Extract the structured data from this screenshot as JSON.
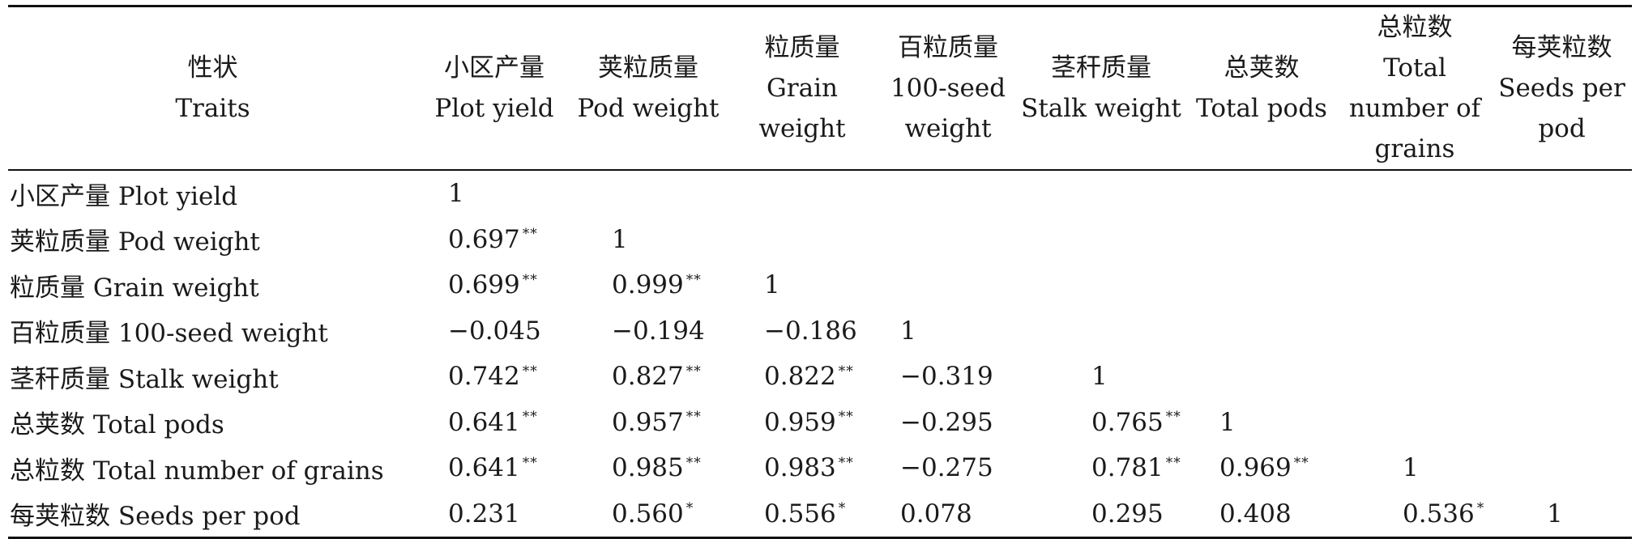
{
  "table": {
    "header_traits": {
      "zh": "性状",
      "en": "Traits"
    },
    "columns": [
      {
        "zh": "小区产量",
        "en": "Plot yield"
      },
      {
        "zh": "荚粒质量",
        "en": "Pod weight"
      },
      {
        "zh": "粒质量",
        "en": "Grain weight"
      },
      {
        "zh": "百粒质量",
        "en": "100-seed weight"
      },
      {
        "zh": "茎秆质量",
        "en": "Stalk weight"
      },
      {
        "zh": "总荚数",
        "en": "Total pods"
      },
      {
        "zh": "总粒数",
        "en": "Total number of grains"
      },
      {
        "zh": "每荚粒数",
        "en": "Seeds per pod"
      }
    ],
    "rows": [
      {
        "label": "小区产量 Plot yield",
        "cells": [
          {
            "v": "1",
            "s": ""
          },
          {
            "v": "",
            "s": ""
          },
          {
            "v": "",
            "s": ""
          },
          {
            "v": "",
            "s": ""
          },
          {
            "v": "",
            "s": ""
          },
          {
            "v": "",
            "s": ""
          },
          {
            "v": "",
            "s": ""
          },
          {
            "v": "",
            "s": ""
          }
        ]
      },
      {
        "label": "荚粒质量 Pod weight",
        "cells": [
          {
            "v": "0.697",
            "s": "**"
          },
          {
            "v": "1",
            "s": ""
          },
          {
            "v": "",
            "s": ""
          },
          {
            "v": "",
            "s": ""
          },
          {
            "v": "",
            "s": ""
          },
          {
            "v": "",
            "s": ""
          },
          {
            "v": "",
            "s": ""
          },
          {
            "v": "",
            "s": ""
          }
        ]
      },
      {
        "label": "粒质量 Grain weight",
        "cells": [
          {
            "v": "0.699",
            "s": "**"
          },
          {
            "v": "0.999",
            "s": "**"
          },
          {
            "v": "1",
            "s": ""
          },
          {
            "v": "",
            "s": ""
          },
          {
            "v": "",
            "s": ""
          },
          {
            "v": "",
            "s": ""
          },
          {
            "v": "",
            "s": ""
          },
          {
            "v": "",
            "s": ""
          }
        ]
      },
      {
        "label": "百粒质量 100-seed weight",
        "cells": [
          {
            "v": "−0.045",
            "s": ""
          },
          {
            "v": "−0.194",
            "s": ""
          },
          {
            "v": "−0.186",
            "s": ""
          },
          {
            "v": "1",
            "s": ""
          },
          {
            "v": "",
            "s": ""
          },
          {
            "v": "",
            "s": ""
          },
          {
            "v": "",
            "s": ""
          },
          {
            "v": "",
            "s": ""
          }
        ]
      },
      {
        "label": "茎秆质量 Stalk weight",
        "cells": [
          {
            "v": "0.742",
            "s": "**"
          },
          {
            "v": "0.827",
            "s": "**"
          },
          {
            "v": "0.822",
            "s": "**"
          },
          {
            "v": "−0.319",
            "s": ""
          },
          {
            "v": "1",
            "s": ""
          },
          {
            "v": "",
            "s": ""
          },
          {
            "v": "",
            "s": ""
          },
          {
            "v": "",
            "s": ""
          }
        ]
      },
      {
        "label": "总荚数 Total pods",
        "cells": [
          {
            "v": "0.641",
            "s": "**"
          },
          {
            "v": "0.957",
            "s": "**"
          },
          {
            "v": "0.959",
            "s": "**"
          },
          {
            "v": "−0.295",
            "s": ""
          },
          {
            "v": "0.765",
            "s": "**"
          },
          {
            "v": "1",
            "s": ""
          },
          {
            "v": "",
            "s": ""
          },
          {
            "v": "",
            "s": ""
          }
        ]
      },
      {
        "label": "总粒数 Total number of grains",
        "cells": [
          {
            "v": "0.641",
            "s": "**"
          },
          {
            "v": "0.985",
            "s": "**"
          },
          {
            "v": "0.983",
            "s": "**"
          },
          {
            "v": "−0.275",
            "s": ""
          },
          {
            "v": "0.781",
            "s": "**"
          },
          {
            "v": "0.969",
            "s": "**"
          },
          {
            "v": "1",
            "s": ""
          },
          {
            "v": "",
            "s": ""
          }
        ]
      },
      {
        "label": "每荚粒数 Seeds per pod",
        "cells": [
          {
            "v": "0.231",
            "s": ""
          },
          {
            "v": "0.560",
            "s": "*"
          },
          {
            "v": "0.556",
            "s": "*"
          },
          {
            "v": "0.078",
            "s": ""
          },
          {
            "v": "0.295",
            "s": ""
          },
          {
            "v": "0.408",
            "s": ""
          },
          {
            "v": "0.536",
            "s": "*"
          },
          {
            "v": "1",
            "s": ""
          }
        ]
      }
    ]
  }
}
